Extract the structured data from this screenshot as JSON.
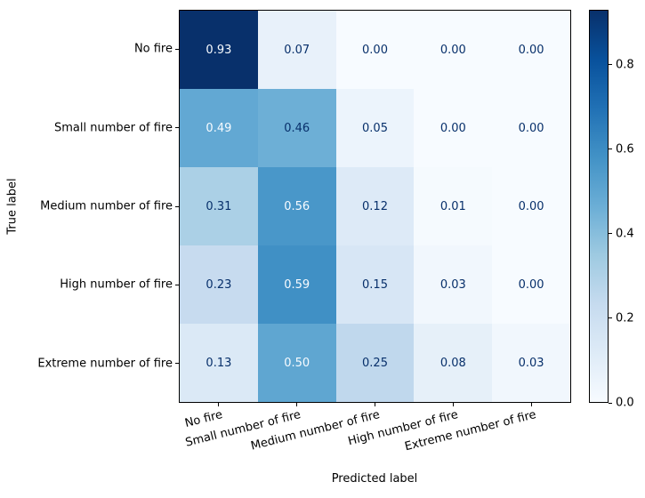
{
  "figure": {
    "background": "#ffffff",
    "text_color": "#000000",
    "axes_edge_color": "#000000"
  },
  "chart_data": {
    "type": "heatmap",
    "title": "",
    "xlabel": "Predicted label",
    "ylabel": "True label",
    "x_categories": [
      "No fire",
      "Small number of fire",
      "Medium number of fire",
      "High number of fire",
      "Extreme number of fire"
    ],
    "y_categories": [
      "No fire",
      "Small number of fire",
      "Medium number of fire",
      "High number of fire",
      "Extreme number of fire"
    ],
    "matrix": [
      [
        0.93,
        0.07,
        0.0,
        0.0,
        0.0
      ],
      [
        0.49,
        0.46,
        0.05,
        0.0,
        0.0
      ],
      [
        0.31,
        0.56,
        0.12,
        0.01,
        0.0
      ],
      [
        0.23,
        0.59,
        0.15,
        0.03,
        0.0
      ],
      [
        0.13,
        0.5,
        0.25,
        0.08,
        0.03
      ]
    ],
    "value_decimals": 2,
    "vmin": 0.0,
    "vmax": 0.93,
    "grid": false,
    "colormap": {
      "name": "Blues",
      "stops": [
        "#f7fbff",
        "#deebf7",
        "#c6dbef",
        "#9ecae1",
        "#6baed6",
        "#4292c6",
        "#2171b5",
        "#08519c",
        "#08306b"
      ]
    },
    "cell_text_colors": {
      "light": "#f7fbff",
      "dark": "#08306b",
      "threshold": 0.465
    },
    "colorbar": {
      "position": "right",
      "tick_labels": [
        "0.0",
        "0.2",
        "0.4",
        "0.6",
        "0.8"
      ],
      "tick_values": [
        0.0,
        0.2,
        0.4,
        0.6,
        0.8
      ]
    }
  }
}
